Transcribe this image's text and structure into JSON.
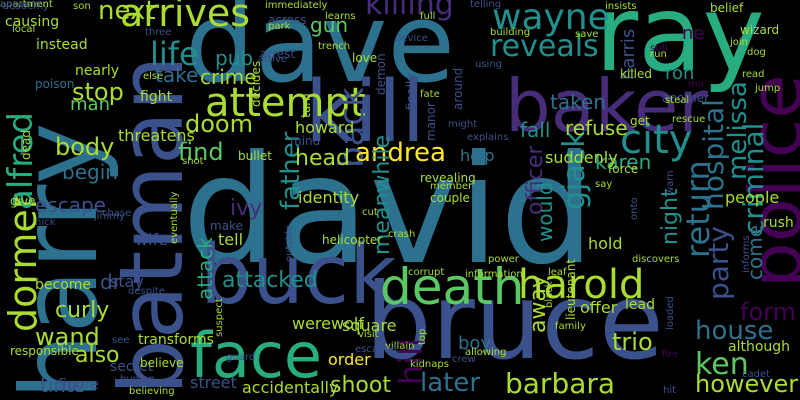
{
  "palette": [
    "#440154",
    "#472c7a",
    "#3b518b",
    "#2c718e",
    "#21908d",
    "#27ad81",
    "#5cc863",
    "#aadc32",
    "#fde725"
  ],
  "words": [
    {
      "t": "david",
      "c": "#2c718e"
    },
    {
      "t": "bruce",
      "c": "#3b518b"
    },
    {
      "t": "harry",
      "c": "#2c718e"
    },
    {
      "t": "dave",
      "c": "#2c718e"
    },
    {
      "t": "ray",
      "c": "#27ad81"
    },
    {
      "t": "batman",
      "c": "#3b518b"
    },
    {
      "t": "baker",
      "c": "#472c7a"
    },
    {
      "t": "buck",
      "c": "#3b518b"
    },
    {
      "t": "kill",
      "c": "#3b518b"
    },
    {
      "t": "police",
      "c": "#440154"
    },
    {
      "t": "face",
      "c": "#27ad81"
    },
    {
      "t": "death",
      "c": "#5cc863"
    },
    {
      "t": "harold",
      "c": "#aadc32"
    },
    {
      "t": "attempt",
      "c": "#aadc32"
    },
    {
      "t": "arrives",
      "c": "#aadc32"
    },
    {
      "t": "wayne",
      "c": "#21908d"
    },
    {
      "t": "killing",
      "c": "#472c7a"
    },
    {
      "t": "reveals",
      "c": "#21908d"
    },
    {
      "t": "dormer",
      "c": "#aadc32"
    },
    {
      "t": "alfred",
      "c": "#27ad81"
    },
    {
      "t": "life",
      "c": "#21908d"
    },
    {
      "t": "next",
      "c": "#aadc32"
    },
    {
      "t": "stop",
      "c": "#aadc32"
    },
    {
      "t": "doom",
      "c": "#aadc32"
    },
    {
      "t": "back",
      "c": "#3b518b"
    },
    {
      "t": "andrea",
      "c": "#fde725"
    },
    {
      "t": "city",
      "c": "#21908d"
    },
    {
      "t": "gjack",
      "c": "#21908d"
    },
    {
      "t": "return",
      "c": "#2c718e"
    },
    {
      "t": "party",
      "c": "#3b518b"
    },
    {
      "t": "hospital",
      "c": "#2c718e"
    },
    {
      "t": "melissa",
      "c": "#21908d"
    },
    {
      "t": "criminal",
      "c": "#21908d"
    },
    {
      "t": "house",
      "c": "#2c718e"
    },
    {
      "t": "form",
      "c": "#440154"
    },
    {
      "t": "ken",
      "c": "#5cc863"
    },
    {
      "t": "trio",
      "c": "#aadc32"
    },
    {
      "t": "however",
      "c": "#aadc32"
    },
    {
      "t": "barbara",
      "c": "#aadc32"
    },
    {
      "t": "later",
      "c": "#2c718e"
    },
    {
      "t": "hill",
      "c": "#440154"
    },
    {
      "t": "shoot",
      "c": "#aadc32"
    },
    {
      "t": "also",
      "c": "#aadc32"
    },
    {
      "t": "wand",
      "c": "#aadc32"
    },
    {
      "t": "time",
      "c": "#3b518b"
    },
    {
      "t": "curly",
      "c": "#aadc32"
    },
    {
      "t": "attacked",
      "c": "#21908d"
    },
    {
      "t": "father",
      "c": "#21908d"
    },
    {
      "t": "meanwhile",
      "c": "#21908d"
    },
    {
      "t": "officer",
      "c": "#472c7a"
    },
    {
      "t": "would",
      "c": "#21908d"
    },
    {
      "t": "away",
      "c": "#aadc32"
    },
    {
      "t": "night",
      "c": "#21908d"
    },
    {
      "t": "come",
      "c": "#2c718e"
    },
    {
      "t": "body",
      "c": "#aadc32"
    },
    {
      "t": "begin",
      "c": "#2c718e"
    },
    {
      "t": "escape",
      "c": "#3b518b"
    },
    {
      "t": "find",
      "c": "#5cc863"
    },
    {
      "t": "head",
      "c": "#aadc32"
    },
    {
      "t": "ivy",
      "c": "#472c7a"
    },
    {
      "t": "crime",
      "c": "#aadc32"
    },
    {
      "t": "take",
      "c": "#2c718e"
    },
    {
      "t": "pub",
      "c": "#21908d"
    },
    {
      "t": "gun",
      "c": "#5cc863"
    },
    {
      "t": "man",
      "c": "#5cc863"
    },
    {
      "t": "fall",
      "c": "#21908d"
    },
    {
      "t": "refuse",
      "c": "#aadc32"
    },
    {
      "t": "karen",
      "c": "#27ad81"
    },
    {
      "t": "taken",
      "c": "#2c718e"
    },
    {
      "t": "harris",
      "c": "#3b518b"
    },
    {
      "t": "ron",
      "c": "#21908d"
    },
    {
      "t": "ne",
      "c": "#440154"
    },
    {
      "t": "boy",
      "c": "#2c718e"
    },
    {
      "t": "attack",
      "c": "#27ad81"
    },
    {
      "t": "dr",
      "c": "#3b518b"
    },
    {
      "t": "werewolf",
      "c": "#aadc32"
    },
    {
      "t": "accidentally",
      "c": "#aadc32"
    },
    {
      "t": "street",
      "c": "#3b518b"
    },
    {
      "t": "order",
      "c": "#fde725"
    },
    {
      "t": "square",
      "c": "#aadc32"
    },
    {
      "t": "identity",
      "c": "#aadc32"
    },
    {
      "t": "help",
      "c": "#2c718e"
    },
    {
      "t": "suddenly",
      "c": "#aadc32"
    },
    {
      "t": "hold",
      "c": "#aadc32"
    },
    {
      "t": "lead",
      "c": "#aadc32"
    },
    {
      "t": "offer",
      "c": "#aadc32"
    },
    {
      "t": "stay",
      "c": "#3b518b"
    },
    {
      "t": "wife",
      "c": "#3b518b"
    },
    {
      "t": "tell",
      "c": "#aadc32"
    },
    {
      "t": "make",
      "c": "#3b518b"
    },
    {
      "t": "threatens",
      "c": "#aadc32"
    },
    {
      "t": "howard",
      "c": "#aadc32"
    },
    {
      "t": "people",
      "c": "#aadc32"
    },
    {
      "t": "rush",
      "c": "#aadc32"
    },
    {
      "t": "although",
      "c": "#aadc32"
    },
    {
      "t": "transforms",
      "c": "#aadc32"
    },
    {
      "t": "figure",
      "c": "#3b518b"
    },
    {
      "t": "secret",
      "c": "#3b518b"
    },
    {
      "t": "responsible",
      "c": "#aadc32"
    },
    {
      "t": "become",
      "c": "#aadc32"
    },
    {
      "t": "give",
      "c": "#aadc32"
    },
    {
      "t": "dead",
      "c": "#aadc32"
    },
    {
      "t": "nearly",
      "c": "#aadc32"
    },
    {
      "t": "fight",
      "c": "#aadc32"
    },
    {
      "t": "poison",
      "c": "#2c718e"
    },
    {
      "t": "causing",
      "c": "#aadc32"
    },
    {
      "t": "local",
      "c": "#aadc32"
    },
    {
      "t": "instead",
      "c": "#aadc32"
    },
    {
      "t": "son",
      "c": "#aadc32"
    },
    {
      "t": "three",
      "c": "#3b518b"
    },
    {
      "t": "immediately",
      "c": "#aadc32"
    },
    {
      "t": "across",
      "c": "#3b518b"
    },
    {
      "t": "learns",
      "c": "#aadc32"
    },
    {
      "t": "full",
      "c": "#aadc32"
    },
    {
      "t": "telling",
      "c": "#3b518b"
    },
    {
      "t": "insists",
      "c": "#aadc32"
    },
    {
      "t": "belief",
      "c": "#aadc32"
    },
    {
      "t": "wizard",
      "c": "#aadc32"
    },
    {
      "t": "building",
      "c": "#aadc32"
    },
    {
      "t": "save",
      "c": "#aadc32"
    },
    {
      "t": "run",
      "c": "#aadc32"
    },
    {
      "t": "join",
      "c": "#aadc32"
    },
    {
      "t": "dog",
      "c": "#aadc32"
    },
    {
      "t": "jump",
      "c": "#aadc32"
    },
    {
      "t": "read",
      "c": "#aadc32"
    },
    {
      "t": "killed",
      "c": "#aadc32"
    },
    {
      "t": "another",
      "c": "#3b518b"
    },
    {
      "t": "steal",
      "c": "#aadc32"
    },
    {
      "t": "get",
      "c": "#aadc32"
    },
    {
      "t": "rescue",
      "c": "#aadc32"
    },
    {
      "t": "force",
      "c": "#aadc32"
    },
    {
      "t": "say",
      "c": "#aadc32"
    },
    {
      "t": "warn",
      "c": "#3b518b"
    },
    {
      "t": "device",
      "c": "#3b518b"
    },
    {
      "t": "love",
      "c": "#aadc32"
    },
    {
      "t": "trench",
      "c": "#aadc32"
    },
    {
      "t": "arrest",
      "c": "#3b518b"
    },
    {
      "t": "turn",
      "c": "#aadc32"
    },
    {
      "t": "mind",
      "c": "#3b518b"
    },
    {
      "t": "decides",
      "c": "#aadc32"
    },
    {
      "t": "manor",
      "c": "#3b518b"
    },
    {
      "t": "fate",
      "c": "#aadc32"
    },
    {
      "t": "around",
      "c": "#3b518b"
    },
    {
      "t": "demon",
      "c": "#3b518b"
    },
    {
      "t": "finally",
      "c": "#3b518b"
    },
    {
      "t": "revealing",
      "c": "#aadc32"
    },
    {
      "t": "member",
      "c": "#aadc32"
    },
    {
      "t": "couple",
      "c": "#aadc32"
    },
    {
      "t": "shot",
      "c": "#aadc32"
    },
    {
      "t": "bullet",
      "c": "#aadc32"
    },
    {
      "t": "cut",
      "c": "#aadc32"
    },
    {
      "t": "helicopter",
      "c": "#aadc32"
    },
    {
      "t": "crash",
      "c": "#aadc32"
    },
    {
      "t": "corrupt",
      "c": "#aadc32"
    },
    {
      "t": "information",
      "c": "#aadc32"
    },
    {
      "t": "power",
      "c": "#aadc32"
    },
    {
      "t": "leaf",
      "c": "#aadc32"
    },
    {
      "t": "discovers",
      "c": "#aadc32"
    },
    {
      "t": "family",
      "c": "#aadc32"
    },
    {
      "t": "lieutenant",
      "c": "#aadc32"
    },
    {
      "t": "black",
      "c": "#aadc32"
    },
    {
      "t": "villain",
      "c": "#aadc32"
    },
    {
      "t": "top",
      "c": "#aadc32"
    },
    {
      "t": "crew",
      "c": "#3b518b"
    },
    {
      "t": "allowing",
      "c": "#aadc32"
    },
    {
      "t": "kidnaps",
      "c": "#aadc32"
    },
    {
      "t": "visit",
      "c": "#aadc32"
    },
    {
      "t": "escaped",
      "c": "#3b518b"
    },
    {
      "t": "guard",
      "c": "#3b518b"
    },
    {
      "t": "suspect",
      "c": "#aadc32"
    },
    {
      "t": "eventually",
      "c": "#aadc32"
    },
    {
      "t": "believing",
      "c": "#aadc32"
    },
    {
      "t": "believe",
      "c": "#aadc32"
    },
    {
      "t": "see",
      "c": "#3b518b"
    },
    {
      "t": "human",
      "c": "#3b518b"
    },
    {
      "t": "despite",
      "c": "#3b518b"
    },
    {
      "t": "nick",
      "c": "#3b518b"
    },
    {
      "t": "academy",
      "c": "#3b518b"
    },
    {
      "t": "else",
      "c": "#aadc32"
    },
    {
      "t": "park",
      "c": "#aadc32"
    },
    {
      "t": "arrive",
      "c": "#3b518b"
    },
    {
      "t": "using",
      "c": "#3b518b"
    },
    {
      "t": "explains",
      "c": "#3b518b"
    },
    {
      "t": "onto",
      "c": "#3b518b"
    },
    {
      "t": "informs",
      "c": "#3b518b"
    },
    {
      "t": "loaded",
      "c": "#3b518b"
    },
    {
      "t": "fire",
      "c": "#440154"
    },
    {
      "t": "hit",
      "c": "#3b518b"
    },
    {
      "t": "cadet",
      "c": "#3b518b"
    },
    {
      "t": "chase",
      "c": "#3b518b"
    },
    {
      "t": "jimmy",
      "c": "#3b518b"
    },
    {
      "t": "mo",
      "c": "#440154"
    },
    {
      "t": "still",
      "c": "#440154"
    },
    {
      "t": "outside",
      "c": "#3b518b"
    },
    {
      "t": "might",
      "c": "#3b518b"
    },
    {
      "t": "apartment",
      "c": "#aadc32"
    },
    {
      "t": "appears",
      "c": "#3b518b"
    }
  ]
}
